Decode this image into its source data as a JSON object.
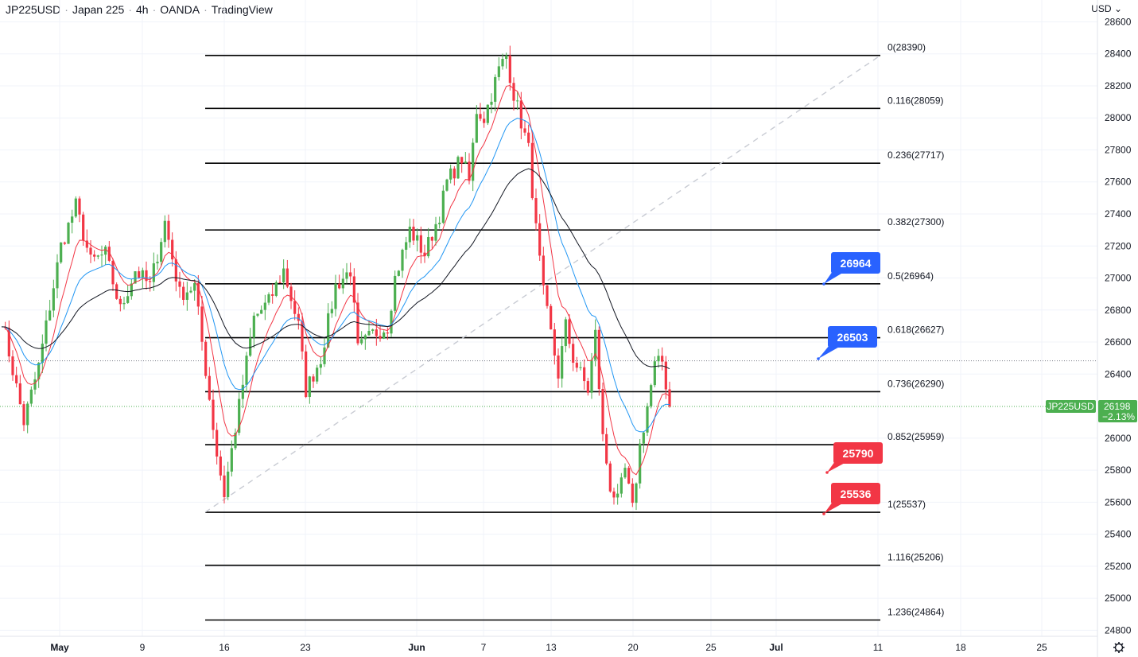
{
  "header": {
    "symbol": "JP225USD",
    "name": "Japan 225",
    "interval": "4h",
    "broker": "OANDA",
    "platform": "TradingView"
  },
  "currency": "USD",
  "price_label": {
    "symbol": "JP225USD",
    "price": "26198",
    "change": "−2.13%"
  },
  "colors": {
    "up": "#4caf50",
    "down": "#f23645",
    "ema_red": "#f23645",
    "ema_blue": "#2196f3",
    "sma_black": "#131722",
    "blue_callout": "#2962ff",
    "red_callout": "#f23645",
    "grid": "#f0f3fa"
  },
  "chart_data": {
    "type": "line",
    "title": "JP225USD · Japan 225 · 4h · OANDA · TradingView",
    "y_axis": {
      "range": [
        24800,
        28600
      ],
      "ticks": [
        28600,
        28400,
        28200,
        28000,
        27800,
        27600,
        27400,
        27200,
        27000,
        26800,
        26600,
        26400,
        26000,
        25800,
        25600,
        25400,
        25200,
        25000,
        24800
      ]
    },
    "x_axis": {
      "ticks": [
        "May",
        "9",
        "16",
        "23",
        "Jun",
        "7",
        "13",
        "20",
        "25",
        "Jul",
        "11",
        "18",
        "25"
      ]
    },
    "price_path": [
      [
        0,
        26750
      ],
      [
        6,
        26100
      ],
      [
        10,
        26450
      ],
      [
        16,
        27200
      ],
      [
        20,
        27450
      ],
      [
        24,
        27100
      ],
      [
        28,
        27150
      ],
      [
        32,
        26800
      ],
      [
        36,
        27050
      ],
      [
        40,
        26950
      ],
      [
        44,
        27350
      ],
      [
        48,
        26900
      ],
      [
        52,
        26950
      ],
      [
        54,
        26600
      ],
      [
        58,
        25900
      ],
      [
        60,
        25650
      ],
      [
        64,
        26200
      ],
      [
        68,
        26750
      ],
      [
        72,
        26850
      ],
      [
        76,
        27050
      ],
      [
        80,
        26700
      ],
      [
        82,
        26300
      ],
      [
        86,
        26500
      ],
      [
        90,
        26950
      ],
      [
        94,
        27050
      ],
      [
        96,
        26550
      ],
      [
        100,
        26650
      ],
      [
        104,
        26700
      ],
      [
        106,
        27000
      ],
      [
        110,
        27300
      ],
      [
        114,
        27150
      ],
      [
        118,
        27400
      ],
      [
        120,
        27600
      ],
      [
        124,
        27750
      ],
      [
        126,
        27600
      ],
      [
        128,
        28050
      ],
      [
        130,
        28000
      ],
      [
        132,
        28150
      ],
      [
        134,
        28300
      ],
      [
        136,
        28390
      ],
      [
        138,
        28150
      ],
      [
        142,
        27800
      ],
      [
        144,
        27300
      ],
      [
        146,
        26900
      ],
      [
        150,
        26400
      ],
      [
        152,
        26700
      ],
      [
        154,
        26500
      ],
      [
        156,
        26400
      ],
      [
        158,
        26300
      ],
      [
        160,
        26650
      ],
      [
        162,
        26000
      ],
      [
        164,
        25700
      ],
      [
        166,
        25600
      ],
      [
        168,
        25800
      ],
      [
        170,
        25550
      ],
      [
        172,
        25950
      ],
      [
        174,
        26200
      ],
      [
        176,
        26450
      ],
      [
        178,
        26480
      ],
      [
        180,
        26198
      ]
    ],
    "series": [
      {
        "name": "",
        "color": "#f23645",
        "period": 8
      },
      {
        "name": "",
        "color": "#2196f3",
        "period": 18
      },
      {
        "name": "",
        "color": "#131722",
        "period": 40
      }
    ],
    "fibonacci": [
      {
        "label": "0(28390)",
        "value": 28390
      },
      {
        "label": "0.116(28059)",
        "value": 28059
      },
      {
        "label": "0.236(27717)",
        "value": 27717
      },
      {
        "label": "0.382(27300)",
        "value": 27300
      },
      {
        "label": "0.5(26964)",
        "value": 26964
      },
      {
        "label": "0.618(26627)",
        "value": 26627
      },
      {
        "label": "0.736(26290)",
        "value": 26290
      },
      {
        "label": "0.852(25959)",
        "value": 25959
      },
      {
        "label": "1(25537)",
        "value": 25537
      },
      {
        "label": "1.116(25206)",
        "value": 25206
      },
      {
        "label": "1.236(24864)",
        "value": 24864
      }
    ],
    "callouts": [
      {
        "text": "26964",
        "value": 26964,
        "color": "blue"
      },
      {
        "text": "26503",
        "value": 26503,
        "color": "blue"
      },
      {
        "text": "25790",
        "value": 25790,
        "color": "red"
      },
      {
        "text": "25536",
        "value": 25536,
        "color": "red"
      }
    ],
    "trend_line": {
      "from": 25537,
      "to": 28390
    },
    "last_price": 26198,
    "high_dotted_level": 26483,
    "grid": true,
    "legend": "none"
  }
}
